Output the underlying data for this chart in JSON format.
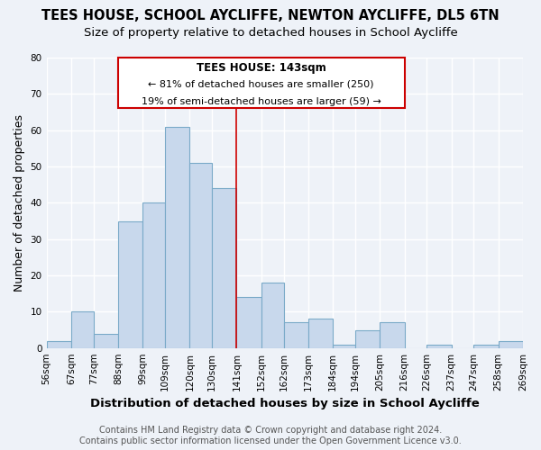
{
  "title": "TEES HOUSE, SCHOOL AYCLIFFE, NEWTON AYCLIFFE, DL5 6TN",
  "subtitle": "Size of property relative to detached houses in School Aycliffe",
  "xlabel": "Distribution of detached houses by size in School Aycliffe",
  "ylabel": "Number of detached properties",
  "bin_labels": [
    "56sqm",
    "67sqm",
    "77sqm",
    "88sqm",
    "99sqm",
    "109sqm",
    "120sqm",
    "130sqm",
    "141sqm",
    "152sqm",
    "162sqm",
    "173sqm",
    "184sqm",
    "194sqm",
    "205sqm",
    "216sqm",
    "226sqm",
    "237sqm",
    "247sqm",
    "258sqm",
    "269sqm"
  ],
  "bin_edges": [
    56,
    67,
    77,
    88,
    99,
    109,
    120,
    130,
    141,
    152,
    162,
    173,
    184,
    194,
    205,
    216,
    226,
    237,
    247,
    258,
    269
  ],
  "bar_heights": [
    2,
    10,
    4,
    35,
    40,
    61,
    51,
    44,
    14,
    18,
    7,
    8,
    1,
    5,
    7,
    0,
    1,
    0,
    1,
    2,
    0
  ],
  "bar_color": "#c8d8ec",
  "bar_edge_color": "#7aaac8",
  "vline_x": 141,
  "vline_color": "#cc0000",
  "ylim": [
    0,
    80
  ],
  "yticks": [
    0,
    10,
    20,
    30,
    40,
    50,
    60,
    70,
    80
  ],
  "annotation_title": "TEES HOUSE: 143sqm",
  "annotation_line1": "← 81% of detached houses are smaller (250)",
  "annotation_line2": "19% of semi-detached houses are larger (59) →",
  "annotation_box_color": "#ffffff",
  "annotation_box_edge": "#cc0000",
  "footer1": "Contains HM Land Registry data © Crown copyright and database right 2024.",
  "footer2": "Contains public sector information licensed under the Open Government Licence v3.0.",
  "bg_color": "#eef2f8",
  "grid_color": "#ffffff",
  "title_fontsize": 10.5,
  "subtitle_fontsize": 9.5,
  "ylabel_fontsize": 9,
  "xlabel_fontsize": 9.5,
  "tick_fontsize": 7.5,
  "ann_title_fontsize": 8.5,
  "ann_text_fontsize": 8.0,
  "footer_fontsize": 7
}
